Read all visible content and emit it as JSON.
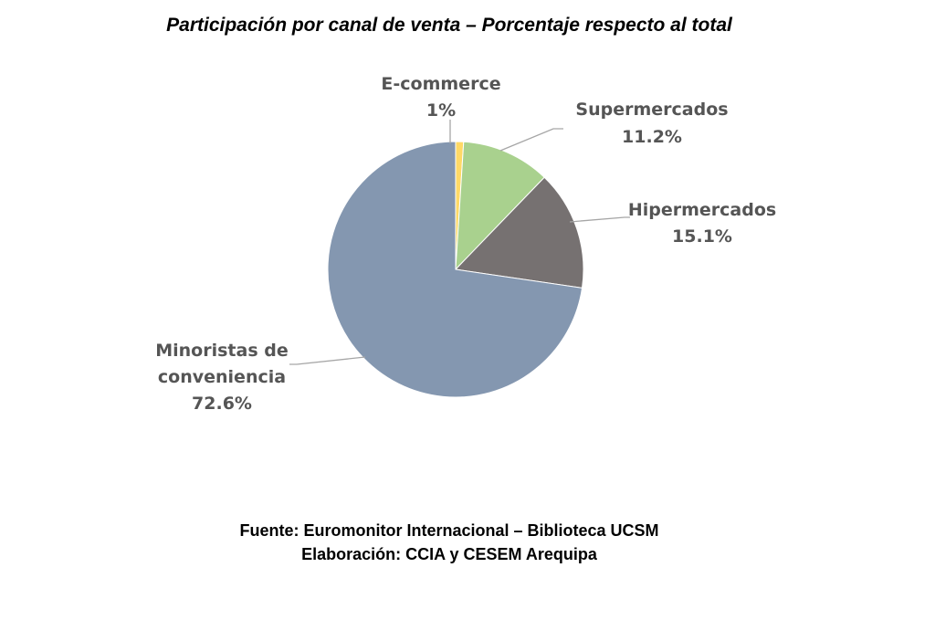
{
  "chart_data": {
    "type": "pie",
    "title": "Participación por canal de venta – Porcentaje respecto al total",
    "categories": [
      "E-commerce",
      "Supermercados",
      "Hipermercados",
      "Minoristas de conveniencia"
    ],
    "value_labels": [
      "1%",
      "11.2%",
      "15.1%",
      "72.6%"
    ],
    "values": [
      1,
      11.2,
      15.1,
      72.6
    ],
    "colors": [
      "#FFD966",
      "#A9D18E",
      "#767171",
      "#8497B0"
    ],
    "legend": "none"
  },
  "labels": {
    "ecommerce": {
      "name": "E-commerce",
      "value": "1%"
    },
    "supermercados": {
      "name": "Supermercados",
      "value": "11.2%"
    },
    "hipermercados": {
      "name": "Hipermercados",
      "value": "15.1%"
    },
    "minoristas": {
      "line1": "Minoristas de",
      "line2": "conveniencia",
      "value": "72.6%"
    }
  },
  "footer": {
    "source": "Fuente: Euromonitor Internacional – Biblioteca UCSM",
    "credit": "Elaboración: CCIA y CESEM Arequipa"
  }
}
